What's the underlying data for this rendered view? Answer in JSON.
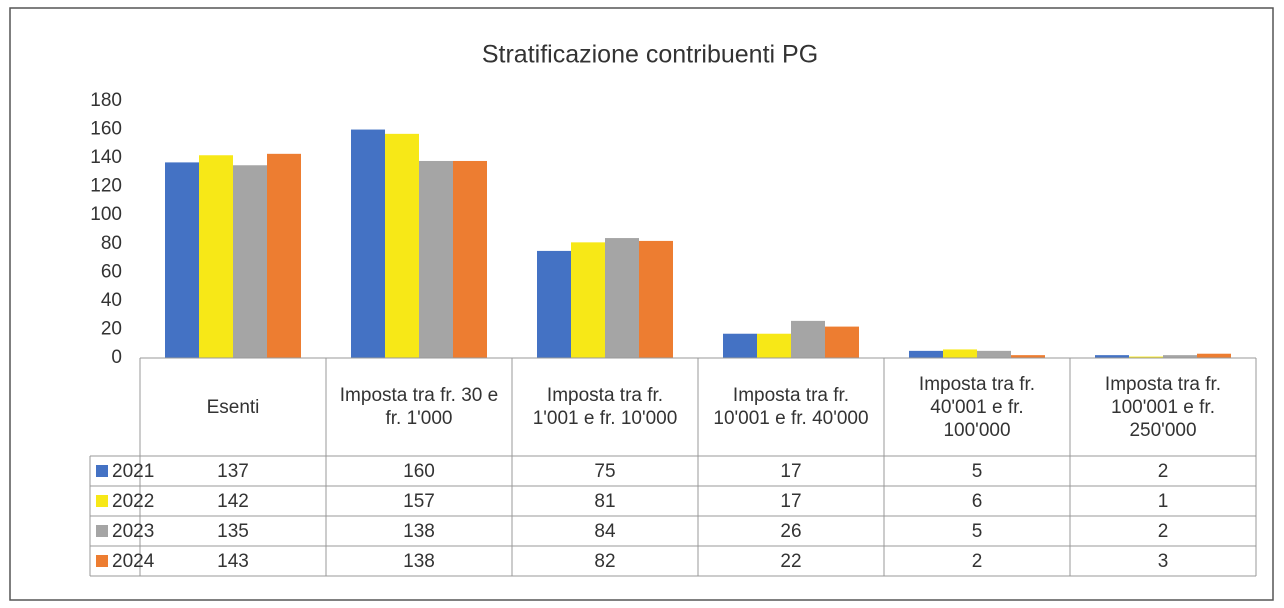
{
  "chart_data": {
    "type": "bar",
    "title": "Stratificazione contribuenti PG",
    "categories": [
      "Esenti",
      "Imposta tra fr. 30 e fr. 1'000",
      "Imposta tra fr. 1'001 e fr. 10'000",
      "Imposta tra fr. 10'001 e fr. 40'000",
      "Imposta tra fr. 40'001 e fr. 100'000",
      "Imposta tra fr. 100'001 e fr. 250'000"
    ],
    "series": [
      {
        "name": "2021",
        "color": "#4472c4",
        "values": [
          137,
          160,
          75,
          17,
          5,
          2
        ]
      },
      {
        "name": "2022",
        "color": "#f7e817",
        "values": [
          142,
          157,
          81,
          17,
          6,
          1
        ]
      },
      {
        "name": "2023",
        "color": "#a5a5a5",
        "values": [
          135,
          138,
          84,
          26,
          5,
          2
        ]
      },
      {
        "name": "2024",
        "color": "#ed7d31",
        "values": [
          143,
          138,
          82,
          22,
          2,
          3
        ]
      }
    ],
    "ylim": [
      0,
      180
    ],
    "yticks": [
      0,
      20,
      40,
      60,
      80,
      100,
      120,
      140,
      160,
      180
    ],
    "grid": false
  }
}
